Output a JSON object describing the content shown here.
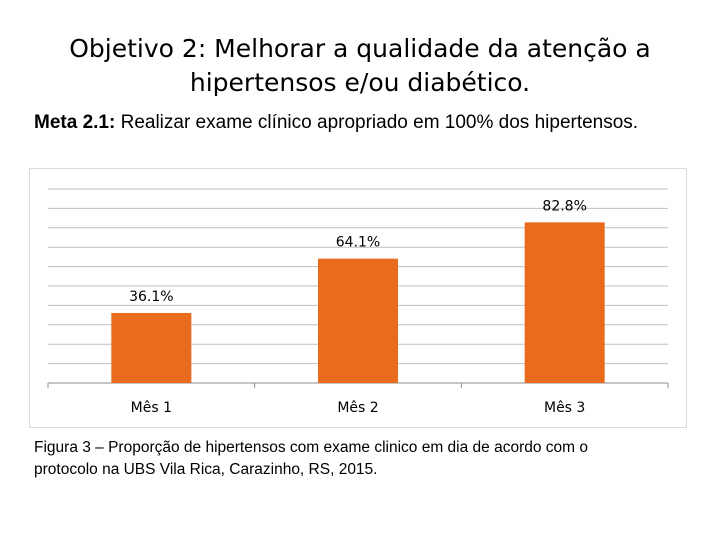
{
  "title": {
    "line1": "Objetivo 2: Melhorar a qualidade da atenção a",
    "line2": "hipertensos e/ou diabético."
  },
  "meta": {
    "label": "Meta 2.1:",
    "text": " Realizar exame clínico apropriado em 100% dos hipertensos."
  },
  "chart_data": {
    "type": "bar",
    "categories": [
      "Mês 1",
      "Mês 2",
      "Mês 3"
    ],
    "values": [
      36.1,
      64.1,
      82.8
    ],
    "data_labels": [
      "36.1%",
      "64.1%",
      "82.8%"
    ],
    "title": "",
    "xlabel": "",
    "ylabel": "",
    "ylim": [
      0,
      100
    ],
    "grid": true,
    "bar_color": "#E86B1E",
    "grid_color": "#BFBFBF"
  },
  "caption": {
    "line1": "Figura 3 – Proporção de hipertensos com exame clinico em dia de acordo com o",
    "line2": "protocolo na UBS Vila Rica, Carazinho, RS, 2015."
  }
}
